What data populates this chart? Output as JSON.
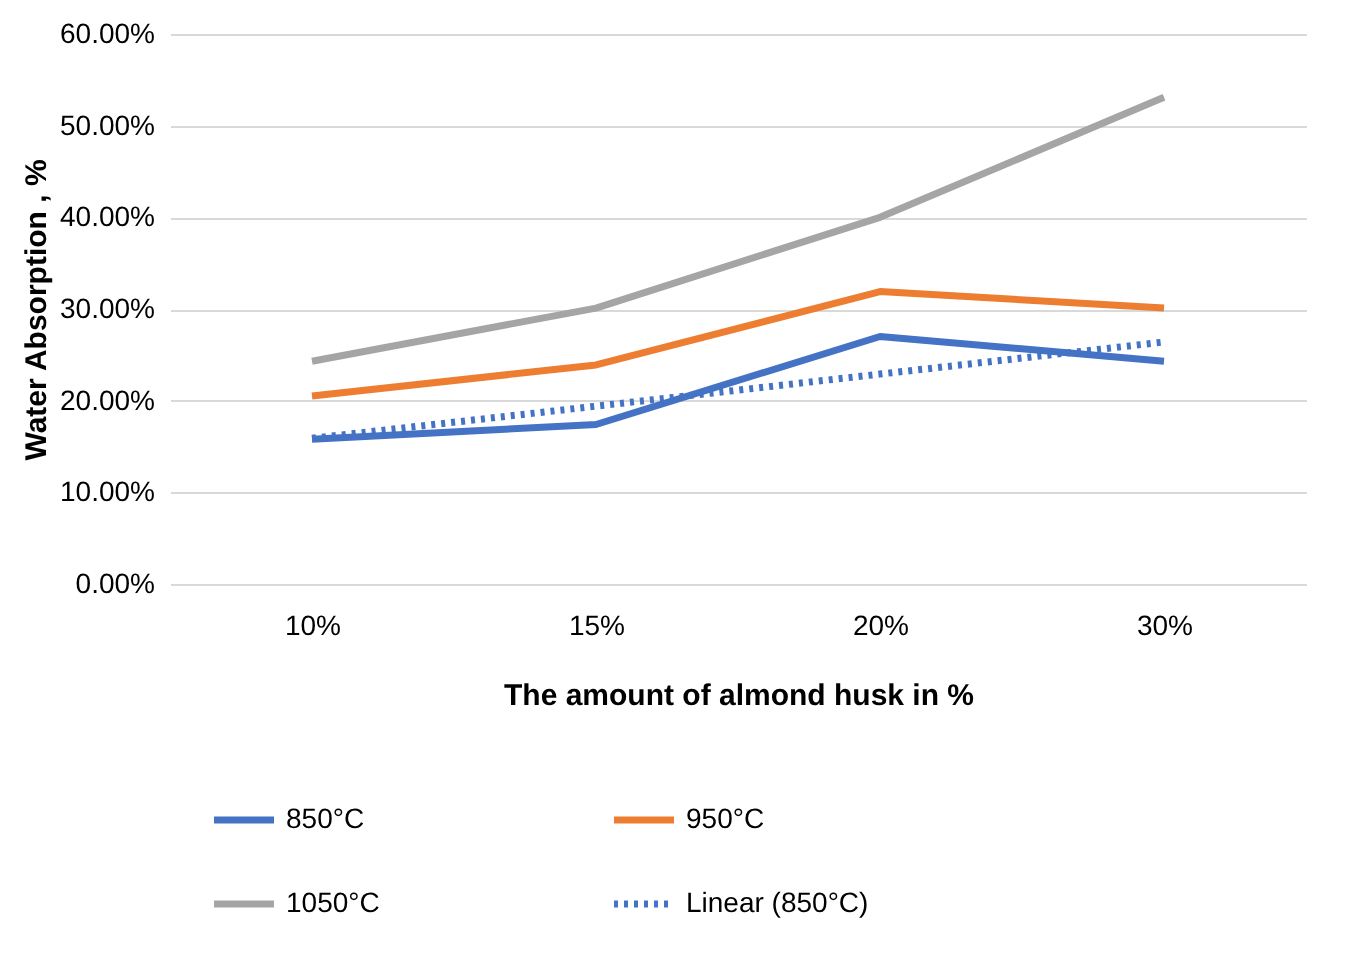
{
  "chart_data": {
    "type": "line",
    "xlabel": "The amount of almond husk in %",
    "ylabel": "Water Absorption , %",
    "categories": [
      "10%",
      "15%",
      "20%",
      "30%"
    ],
    "series": [
      {
        "name": "850°C",
        "color": "#4472c4",
        "values": [
          15.8,
          17.4,
          27.0,
          24.3
        ]
      },
      {
        "name": "950°C",
        "color": "#ed7d31",
        "values": [
          20.5,
          23.9,
          31.9,
          30.1
        ]
      },
      {
        "name": "1050°C",
        "color": "#a5a5a5",
        "values": [
          24.3,
          30.1,
          40.0,
          53.1
        ]
      },
      {
        "name": "Linear (850°C)",
        "color": "#4472c4",
        "values": [
          15.9,
          19.4,
          22.9,
          26.4
        ],
        "line_style": "dotted"
      }
    ],
    "ylim": [
      0,
      60
    ],
    "yticks": [
      {
        "value": 0,
        "label": "0.00%"
      },
      {
        "value": 10,
        "label": "10.00%"
      },
      {
        "value": 20,
        "label": "20.00%"
      },
      {
        "value": 30,
        "label": "30.00%"
      },
      {
        "value": 40,
        "label": "40.00%"
      },
      {
        "value": 50,
        "label": "50.00%"
      },
      {
        "value": 60,
        "label": "60.00%"
      }
    ],
    "grid": "y",
    "legend": "bottom",
    "marker": "none",
    "line_style": "solid"
  }
}
